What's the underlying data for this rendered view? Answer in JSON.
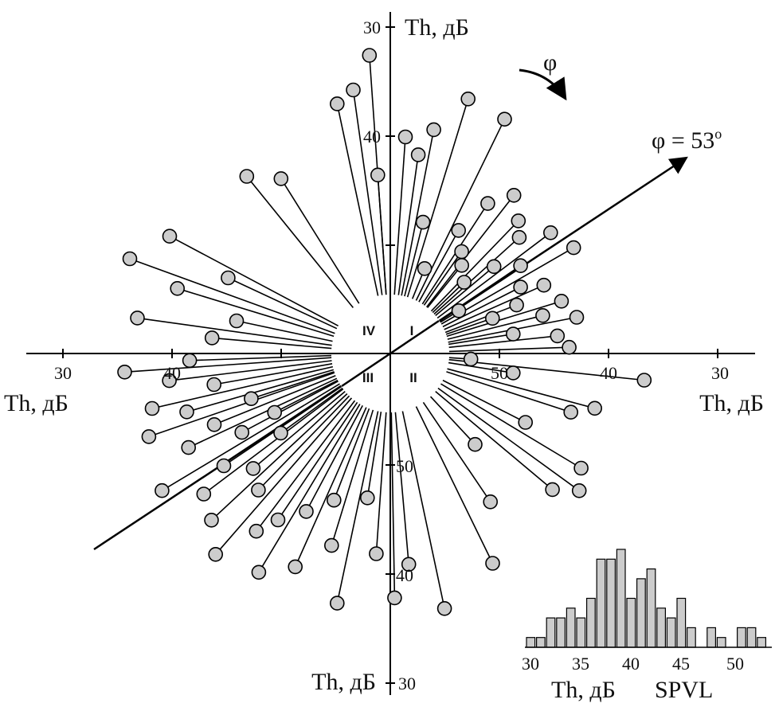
{
  "chart_data": [
    {
      "type": "scatter",
      "axis_labels": {
        "top": "Th, дБ",
        "bottom": "Th, дБ",
        "left": "Th, дБ",
        "right": "Th, дБ"
      },
      "axis_ticks": {
        "top": [
          "30",
          "40"
        ],
        "bottom": [
          "50",
          "40",
          "30"
        ],
        "left": [
          "30",
          "40"
        ],
        "right": [
          "50",
          "40",
          "30"
        ]
      },
      "quadrants": [
        "I",
        "II",
        "III",
        "IV"
      ],
      "rotation_label": "φ",
      "direction_label": "φ = 53",
      "direction_degree_symbol": "o",
      "direction_angle_deg": 53,
      "points": [
        {
          "q": "I",
          "x": 4,
          "y": 40.5
        },
        {
          "q": "I",
          "x": 11,
          "y": 39.5
        },
        {
          "q": "I",
          "x": 17,
          "y": 36
        },
        {
          "q": "I",
          "x": 26,
          "y": 36.5
        },
        {
          "q": "I",
          "x": 29,
          "y": 47.5
        },
        {
          "q": "I",
          "x": 33,
          "y": 44
        },
        {
          "q": "I",
          "x": 38,
          "y": 42
        },
        {
          "q": "I",
          "x": 44,
          "y": 43.5
        },
        {
          "q": "I",
          "x": 48,
          "y": 44.5
        },
        {
          "q": "I",
          "x": 53,
          "y": 42
        },
        {
          "q": "I",
          "x": 56,
          "y": 46
        },
        {
          "q": "I",
          "x": 60,
          "y": 41
        },
        {
          "q": "I",
          "x": 63,
          "y": 47
        },
        {
          "q": "I",
          "x": 66,
          "y": 45
        },
        {
          "q": "I",
          "x": 69,
          "y": 48
        },
        {
          "q": "I",
          "x": 73,
          "y": 44
        },
        {
          "q": "I",
          "x": 76,
          "y": 46
        },
        {
          "q": "I",
          "x": 79,
          "y": 43
        },
        {
          "q": "I",
          "x": 84,
          "y": 45
        },
        {
          "q": "I",
          "x": 88,
          "y": 44
        },
        {
          "q": "I",
          "x": 81,
          "y": 49
        },
        {
          "q": "I",
          "x": 71,
          "y": 50.5
        },
        {
          "q": "I",
          "x": 58,
          "y": 53
        },
        {
          "q": "I",
          "x": 50,
          "y": 48
        },
        {
          "q": "I",
          "x": 46,
          "y": 51
        },
        {
          "q": "I",
          "x": 39,
          "y": 50
        },
        {
          "q": "I",
          "x": 35,
          "y": 49
        },
        {
          "q": "I",
          "x": 22,
          "y": 52
        },
        {
          "q": "I",
          "x": 14,
          "y": 48
        },
        {
          "q": "I",
          "x": 8,
          "y": 42
        },
        {
          "q": "II",
          "x": 4,
          "y": 53
        },
        {
          "q": "II",
          "x": 9,
          "y": 49
        },
        {
          "q": "II",
          "x": 15,
          "y": 41
        },
        {
          "q": "II",
          "x": 18,
          "y": 43
        },
        {
          "q": "II",
          "x": 27,
          "y": 46.5
        },
        {
          "q": "II",
          "x": 31,
          "y": 40
        },
        {
          "q": "II",
          "x": 36,
          "y": 39
        },
        {
          "q": "II",
          "x": 40,
          "y": 41
        },
        {
          "q": "II",
          "x": 47,
          "y": 49
        },
        {
          "q": "II",
          "x": 56,
          "y": 44
        },
        {
          "q": "II",
          "x": 64,
          "y": 39
        },
        {
          "q": "II",
          "x": 78,
          "y": 36.5
        },
        {
          "q": "II",
          "x": 85,
          "y": 41
        },
        {
          "q": "II",
          "x": 89,
          "y": 38
        },
        {
          "q": "II",
          "x": 6,
          "y": 37
        },
        {
          "q": "III",
          "x": 4,
          "y": 42
        },
        {
          "q": "III",
          "x": 9,
          "y": 47
        },
        {
          "q": "III",
          "x": 12,
          "y": 37
        },
        {
          "q": "III",
          "x": 17,
          "y": 42
        },
        {
          "q": "III",
          "x": 21,
          "y": 46
        },
        {
          "q": "III",
          "x": 24,
          "y": 39
        },
        {
          "q": "III",
          "x": 28,
          "y": 44
        },
        {
          "q": "III",
          "x": 31,
          "y": 37
        },
        {
          "q": "III",
          "x": 34,
          "y": 42
        },
        {
          "q": "III",
          "x": 37,
          "y": 40
        },
        {
          "q": "III",
          "x": 41,
          "y": 36
        },
        {
          "q": "III",
          "x": 44,
          "y": 43
        },
        {
          "q": "III",
          "x": 47,
          "y": 38
        },
        {
          "q": "III",
          "x": 50,
          "y": 44
        },
        {
          "q": "III",
          "x": 53,
          "y": 39
        },
        {
          "q": "III",
          "x": 56,
          "y": 42
        },
        {
          "q": "III",
          "x": 59,
          "y": 36
        },
        {
          "q": "III",
          "x": 62,
          "y": 45
        },
        {
          "q": "III",
          "x": 65,
          "y": 40
        },
        {
          "q": "III",
          "x": 68,
          "y": 43
        },
        {
          "q": "III",
          "x": 71,
          "y": 37
        },
        {
          "q": "III",
          "x": 74,
          "y": 41
        },
        {
          "q": "III",
          "x": 77,
          "y": 38
        },
        {
          "q": "III",
          "x": 80,
          "y": 44
        },
        {
          "q": "III",
          "x": 83,
          "y": 40
        },
        {
          "q": "III",
          "x": 86,
          "y": 36
        },
        {
          "q": "III",
          "x": 88,
          "y": 42
        },
        {
          "q": "III",
          "x": 54,
          "y": 48
        },
        {
          "q": "III",
          "x": 63,
          "y": 48.5
        },
        {
          "q": "III",
          "x": 72,
          "y": 47
        },
        {
          "q": "IV",
          "x": 5,
          "y": 44
        },
        {
          "q": "IV",
          "x": 8,
          "y": 37
        },
        {
          "q": "IV",
          "x": 12,
          "y": 46
        },
        {
          "q": "IV",
          "x": 17,
          "y": 40
        },
        {
          "q": "IV",
          "x": 20,
          "y": 35
        },
        {
          "q": "IV",
          "x": 25,
          "y": 44
        },
        {
          "q": "IV",
          "x": 28,
          "y": 37.5
        },
        {
          "q": "IV",
          "x": 51,
          "y": 39.5
        },
        {
          "q": "IV",
          "x": 58,
          "y": 41.5
        },
        {
          "q": "IV",
          "x": 78,
          "y": 37
        },
        {
          "q": "IV",
          "x": 82,
          "y": 36
        },
        {
          "q": "IV",
          "x": 86,
          "y": 33
        },
        {
          "q": "IV",
          "x": 86,
          "y": 44
        }
      ]
    },
    {
      "type": "bar",
      "title": "SPVL",
      "xlabel": "Th, дБ",
      "x_ticks": [
        "30",
        "35",
        "40",
        "45",
        "50"
      ],
      "xlim": [
        29.5,
        53.5
      ],
      "ylim": [
        0,
        11
      ],
      "categories": [
        30,
        31,
        32,
        33,
        34,
        35,
        36,
        37,
        38,
        39,
        40,
        41,
        42,
        43,
        44,
        45,
        46,
        47,
        48,
        49,
        50,
        51,
        52,
        53
      ],
      "values": [
        1,
        1,
        3,
        3,
        4,
        3,
        5,
        9,
        9,
        10,
        5,
        7,
        8,
        4,
        3,
        5,
        2,
        0,
        2,
        1,
        0,
        2,
        2,
        1
      ]
    }
  ]
}
